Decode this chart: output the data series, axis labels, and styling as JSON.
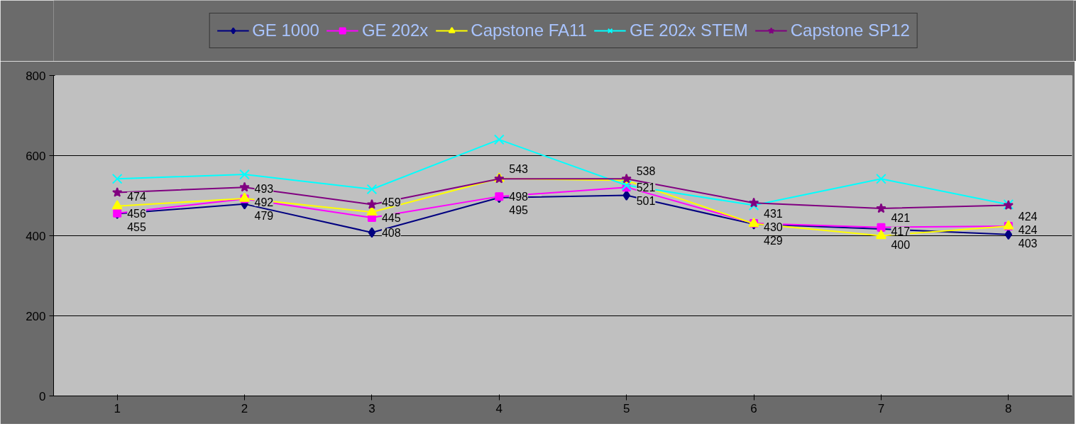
{
  "chart_data": {
    "type": "line",
    "categories": [
      "1",
      "2",
      "3",
      "4",
      "5",
      "6",
      "7",
      "8"
    ],
    "ylim": [
      0,
      800
    ],
    "yticks": [
      0,
      200,
      400,
      600,
      800
    ],
    "grid": "y",
    "legend": "top",
    "series": [
      {
        "name": "GE 1000",
        "color": "#000080",
        "marker": "diamond",
        "values": [
          455,
          479,
          408,
          495,
          501,
          429,
          417,
          403
        ],
        "value_labels": [
          "455",
          "479",
          "408",
          "495",
          "501",
          "429",
          "417",
          "403"
        ]
      },
      {
        "name": "GE 202x",
        "color": "#ff00ff",
        "marker": "square",
        "values": [
          456,
          492,
          445,
          498,
          521,
          431,
          421,
          424
        ],
        "value_labels": [
          "456",
          "492",
          "445",
          "498",
          "521",
          "431",
          "421",
          "424"
        ]
      },
      {
        "name": "Capstone FA11",
        "color": "#ffff00",
        "marker": "triangle",
        "values": [
          474,
          493,
          459,
          543,
          538,
          430,
          400,
          424
        ],
        "value_labels": [
          "474",
          "493",
          "459",
          "543",
          "538",
          "430",
          "400",
          "424"
        ]
      },
      {
        "name": "GE 202x STEM",
        "color": "#00ffff",
        "marker": "cross",
        "values": [
          542,
          553,
          516,
          640,
          526,
          476,
          542,
          478
        ]
      },
      {
        "name": "Capstone SP12",
        "color": "#800080",
        "marker": "star",
        "values": [
          508,
          521,
          478,
          542,
          542,
          482,
          468,
          476
        ]
      }
    ]
  }
}
